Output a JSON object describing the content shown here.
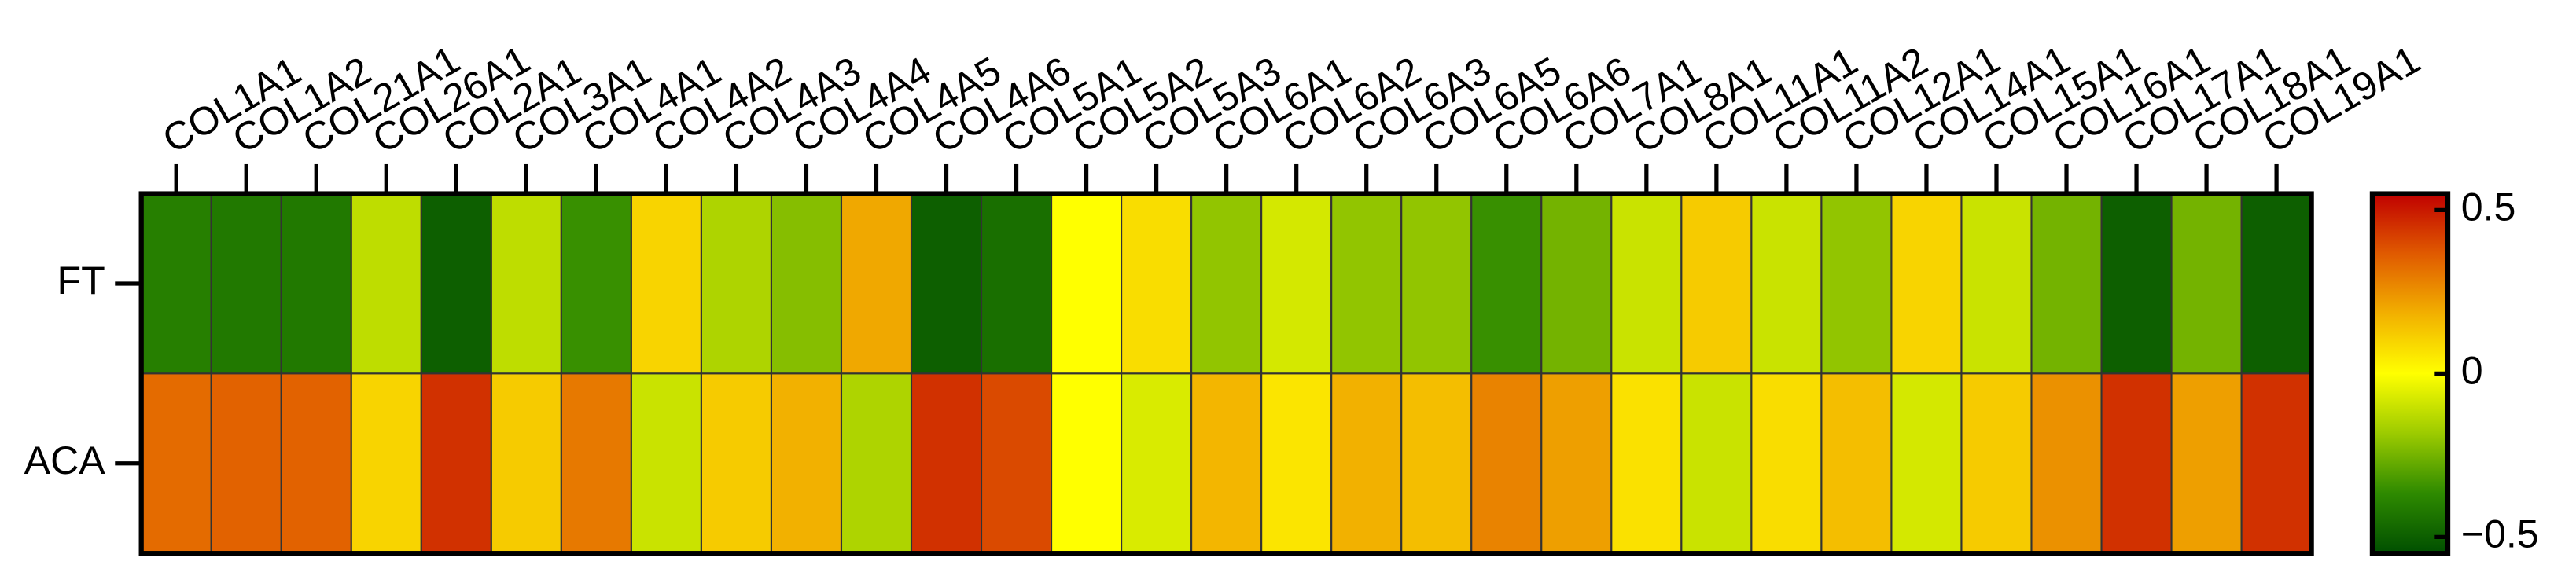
{
  "chart_data": {
    "type": "heatmap",
    "x_categories": [
      "COL1A1",
      "COL1A2",
      "COL21A1",
      "COL26A1",
      "COL2A1",
      "COL3A1",
      "COL4A1",
      "COL4A2",
      "COL4A3",
      "COL4A4",
      "COL4A5",
      "COL4A6",
      "COL5A1",
      "COL5A2",
      "COL5A3",
      "COL6A1",
      "COL6A2",
      "COL6A3",
      "COL6A5",
      "COL6A6",
      "COL7A1",
      "COL8A1",
      "COL11A1",
      "COL11A2",
      "COL12A1",
      "COL14A1",
      "COL15A1",
      "COL16A1",
      "COL17A1",
      "COL18A1",
      "COL19A1"
    ],
    "y_categories": [
      "FT",
      "ACA"
    ],
    "values": [
      [
        -0.4,
        -0.42,
        -0.42,
        -0.12,
        -0.5,
        -0.12,
        -0.35,
        0.1,
        -0.15,
        -0.22,
        0.2,
        -0.5,
        -0.45,
        0.0,
        0.08,
        -0.2,
        -0.08,
        -0.2,
        -0.2,
        -0.35,
        -0.25,
        -0.1,
        0.12,
        -0.1,
        -0.2,
        0.1,
        -0.1,
        -0.25,
        -0.5,
        -0.25,
        -0.5
      ],
      [
        0.33,
        0.35,
        0.35,
        0.1,
        0.45,
        0.12,
        0.3,
        -0.1,
        0.12,
        0.18,
        -0.15,
        0.45,
        0.4,
        0.0,
        -0.07,
        0.17,
        0.06,
        0.18,
        0.15,
        0.28,
        0.22,
        0.07,
        -0.1,
        0.08,
        0.15,
        -0.08,
        0.12,
        0.25,
        0.45,
        0.22,
        0.45
      ]
    ],
    "clim": [
      -0.55,
      0.55
    ],
    "cticks": [
      0.5,
      0,
      {
        "value": -0.5,
        "label": "−0.5"
      }
    ],
    "colormap": [
      "#004f00",
      "#2e8a00",
      "#9ccb00",
      "#ffff00",
      "#f2b000",
      "#e05a00",
      "#c00000"
    ]
  }
}
